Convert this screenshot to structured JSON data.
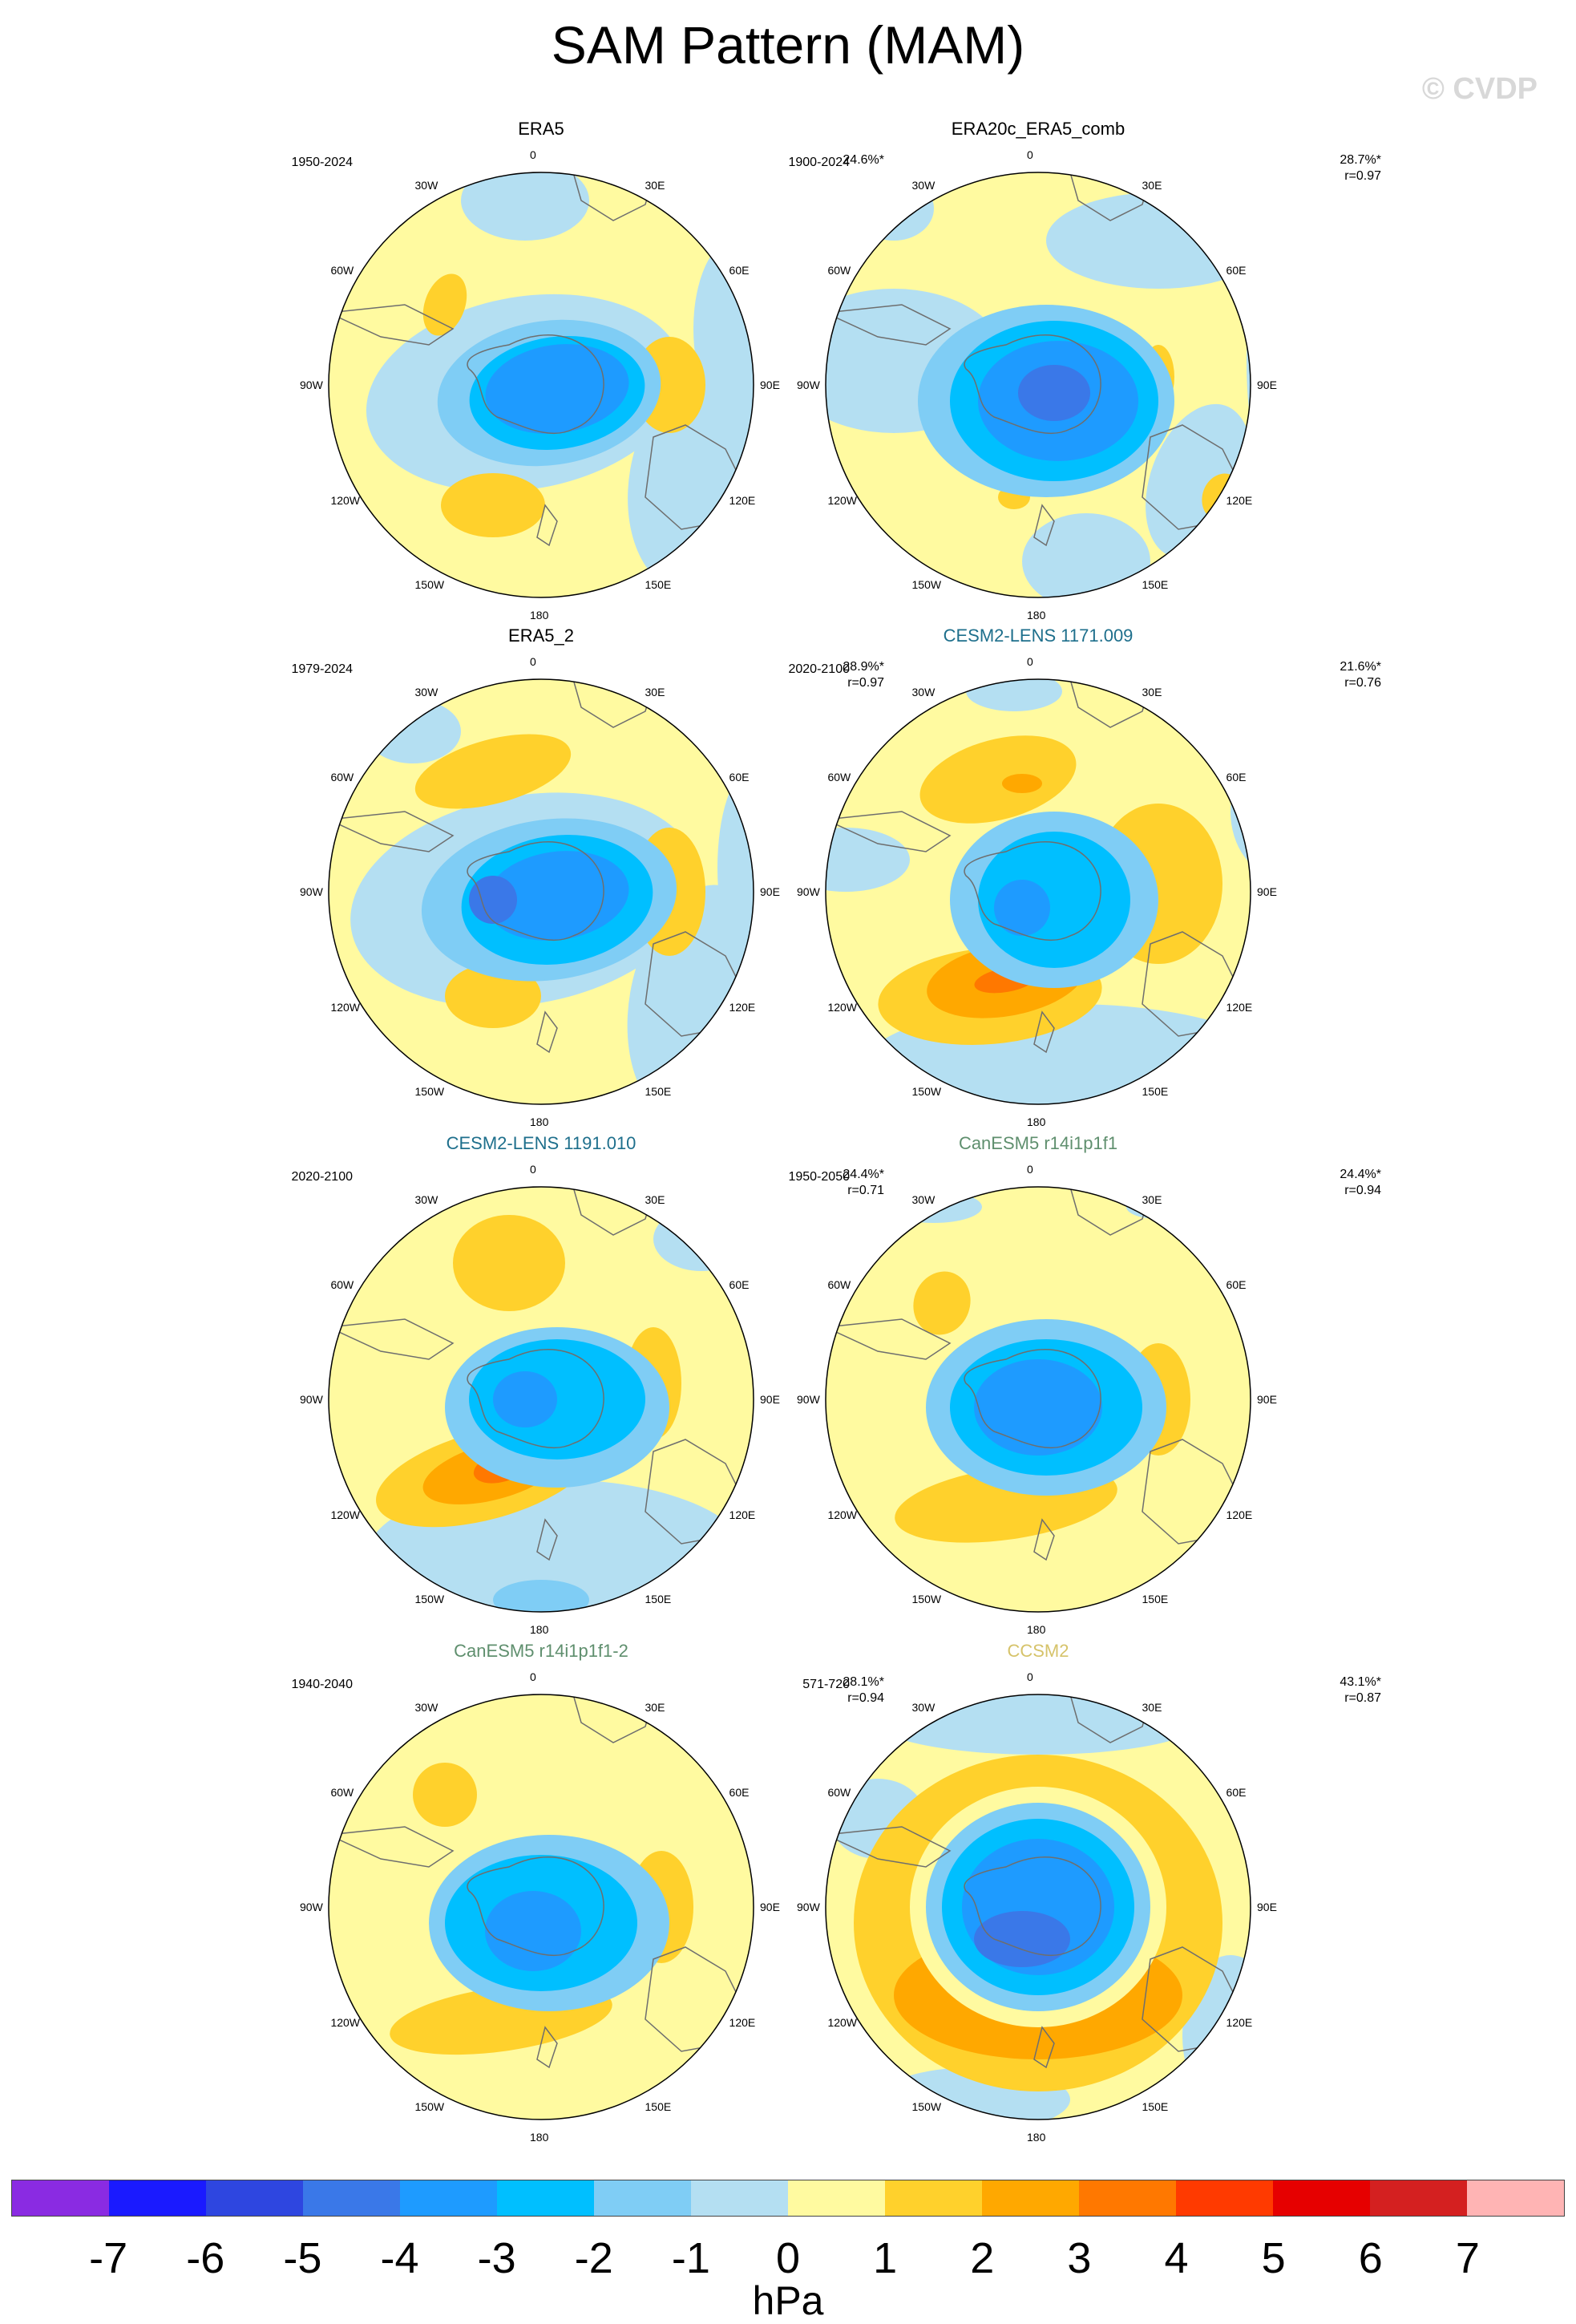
{
  "title": "SAM Pattern (MAM)",
  "watermark": "© CVDP",
  "longitude_labels": [
    "0",
    "30E",
    "60E",
    "90E",
    "120E",
    "150E",
    "180",
    "150W",
    "120W",
    "90W",
    "60W",
    "30W"
  ],
  "panels": [
    {
      "id": "era5",
      "name": "ERA5",
      "name_color": "#000000",
      "period": "1950-2024",
      "pct": "24.6%*",
      "r": ""
    },
    {
      "id": "era20c",
      "name": "ERA20c_ERA5_comb",
      "name_color": "#000000",
      "period": "1900-2024",
      "pct": "28.7%*",
      "r": "r=0.97"
    },
    {
      "id": "era5_2",
      "name": "ERA5_2",
      "name_color": "#000000",
      "period": "1979-2024",
      "pct": "28.9%*",
      "r": "r=0.97"
    },
    {
      "id": "cesm2_1171",
      "name": "CESM2-LENS 1171.009",
      "name_color": "#1e6f8c",
      "period": "2020-2100",
      "pct": "21.6%*",
      "r": "r=0.76"
    },
    {
      "id": "cesm2_1191",
      "name": "CESM2-LENS 1191.010",
      "name_color": "#1e6f8c",
      "period": "2020-2100",
      "pct": "24.4%*",
      "r": "r=0.71"
    },
    {
      "id": "canesm5",
      "name": "CanESM5 r14i1p1f1",
      "name_color": "#5f8f6e",
      "period": "1950-2050",
      "pct": "24.4%*",
      "r": "r=0.94"
    },
    {
      "id": "canesm5_2",
      "name": "CanESM5 r14i1p1f1-2",
      "name_color": "#5f8f6e",
      "period": "1940-2040",
      "pct": "28.1%*",
      "r": "r=0.94"
    },
    {
      "id": "ccsm2",
      "name": "CCSM2",
      "name_color": "#d6c36a",
      "period": "571-720",
      "pct": "43.1%*",
      "r": "r=0.87"
    }
  ],
  "colorbar": {
    "unit": "hPa",
    "ticks": [
      "-7",
      "-6",
      "-5",
      "-4",
      "-3",
      "-2",
      "-1",
      "0",
      "1",
      "2",
      "3",
      "4",
      "5",
      "6",
      "7"
    ],
    "colors": [
      "#8a2be2",
      "#1a1aff",
      "#2e46e0",
      "#3a78e8",
      "#1e9bff",
      "#00bfff",
      "#7fcdf5",
      "#b4dff2",
      "#fffaa0",
      "#ffd12c",
      "#ffa800",
      "#ff7800",
      "#ff3a00",
      "#e60000",
      "#d42020",
      "#ffb4b4"
    ]
  },
  "colors": {
    "ocean_neutral": "#fffaa0",
    "land_outline": "#6e6e6e"
  }
}
